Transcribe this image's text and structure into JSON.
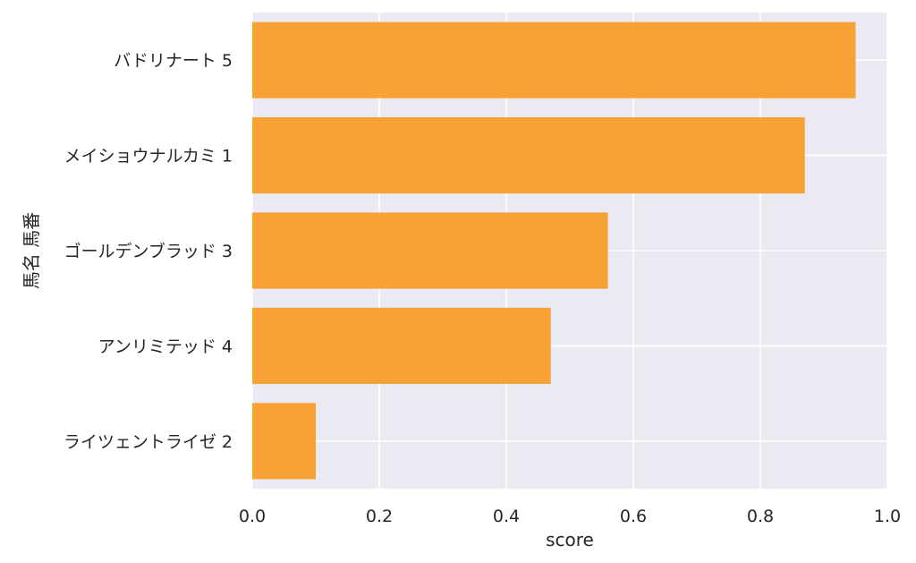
{
  "chart_data": {
    "type": "bar",
    "orientation": "horizontal",
    "categories": [
      "バドリナート 5",
      "メイショウナルカミ 1",
      "ゴールデンブラッド 3",
      "アンリミテッド 4",
      "ライツェントライゼ 2"
    ],
    "values": [
      0.95,
      0.87,
      0.56,
      0.47,
      0.1
    ],
    "xlabel": "score",
    "ylabel": "馬名 馬番",
    "xlim": [
      0,
      1.0
    ],
    "xticks": [
      "0.0",
      "0.2",
      "0.4",
      "0.6",
      "0.8",
      "1.0"
    ],
    "grid": true,
    "bar_color": "#f89a25",
    "background_color": "#eaeaf2"
  }
}
